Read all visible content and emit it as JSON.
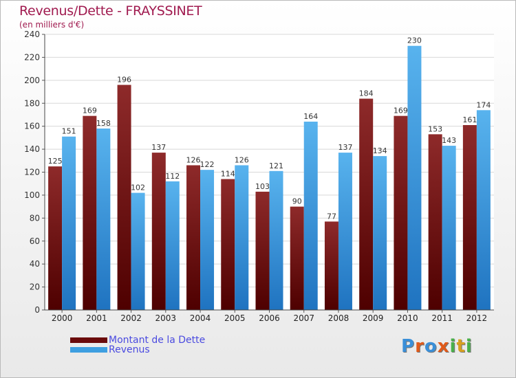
{
  "title": "Revenus/Dette - FRAYSSINET",
  "subtitle": "(en milliers d'€)",
  "colors": {
    "dette": "#7a1418",
    "revenus": "#3e9fe0",
    "title": "#a01a4f",
    "legend_text": "#4a4ae0"
  },
  "legend": [
    {
      "label": "Montant de la Dette",
      "color": "#7a1418"
    },
    {
      "label": "Revenus",
      "color": "#3e9fe0"
    }
  ],
  "logo": {
    "letters": [
      "P",
      "r",
      "o",
      "x",
      "i",
      "t",
      "i"
    ],
    "colors": [
      "#3a8fd8",
      "#e05a1a",
      "#3a8fd8",
      "#e05a1a",
      "#4ab04a",
      "#d8a020",
      "#4ab04a"
    ]
  },
  "chart_data": {
    "type": "bar",
    "title": "Revenus/Dette - FRAYSSINET",
    "subtitle": "(en milliers d'€)",
    "categories": [
      "2000",
      "2001",
      "2002",
      "2003",
      "2004",
      "2005",
      "2006",
      "2007",
      "2008",
      "2009",
      "2010",
      "2011",
      "2012"
    ],
    "series": [
      {
        "name": "Montant de la Dette",
        "values": [
          125,
          169,
          196,
          137,
          126,
          114,
          103,
          90,
          77,
          184,
          169,
          153,
          161
        ]
      },
      {
        "name": "Revenus",
        "values": [
          151,
          158,
          102,
          112,
          122,
          126,
          121,
          164,
          137,
          134,
          230,
          143,
          174
        ]
      }
    ],
    "ylim": [
      0,
      240
    ],
    "yticks": [
      0,
      20,
      40,
      60,
      80,
      100,
      120,
      140,
      160,
      180,
      200,
      220,
      240
    ],
    "grid": true,
    "legend_position": "bottom-left"
  }
}
